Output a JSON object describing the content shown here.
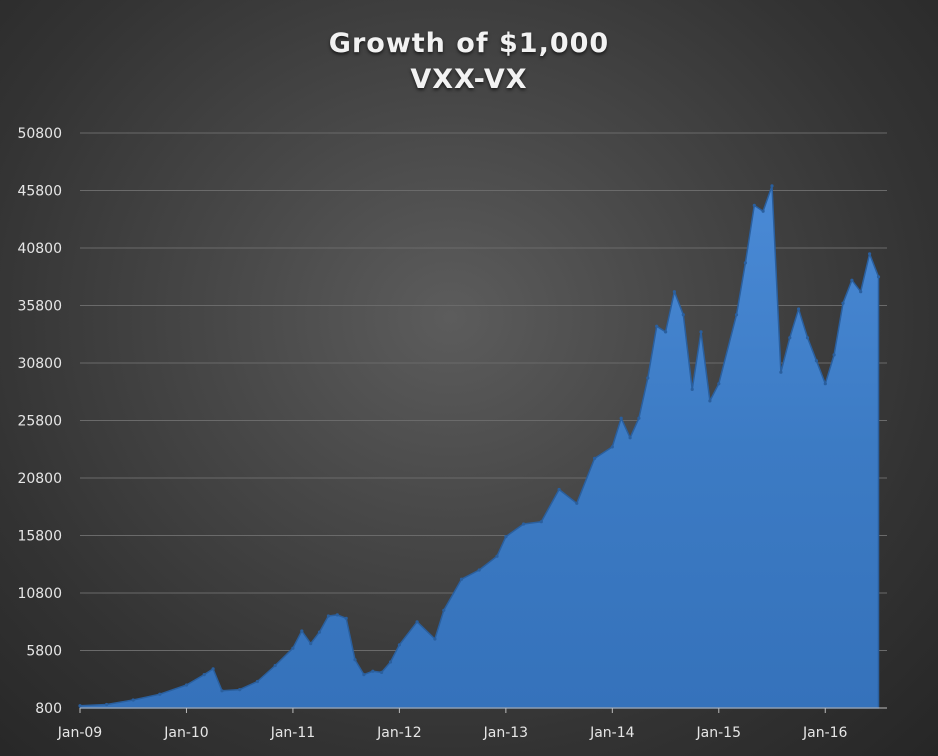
{
  "chart_data": {
    "type": "area",
    "title": "Growth of $1,000",
    "subtitle": "VXX-VX",
    "xlabel": "",
    "ylabel": "",
    "ylim": [
      800,
      50800
    ],
    "y_ticks": [
      "800",
      "5800",
      "10800",
      "15800",
      "20800",
      "25800",
      "30800",
      "35800",
      "40800",
      "45800",
      "50800"
    ],
    "x_ticks": [
      "Jan-09",
      "Jan-10",
      "Jan-11",
      "Jan-12",
      "Jan-13",
      "Jan-14",
      "Jan-15",
      "Jan-16"
    ],
    "grid": true,
    "legend": "none",
    "colors": {
      "fill": "#3c7bc4",
      "fill_dark": "#2a5f9e",
      "grid": "#6a6a6a"
    },
    "series": [
      {
        "values": [
          {
            "x": "Jan-09",
            "y": 1000
          },
          {
            "x": "Apr-09",
            "y": 1100
          },
          {
            "x": "Jul-09",
            "y": 1500
          },
          {
            "x": "Oct-09",
            "y": 2000
          },
          {
            "x": "Jan-10",
            "y": 2800
          },
          {
            "x": "Mar-10",
            "y": 3700
          },
          {
            "x": "Apr-10",
            "y": 4200
          },
          {
            "x": "May-10",
            "y": 2300
          },
          {
            "x": "Jul-10",
            "y": 2400
          },
          {
            "x": "Sep-10",
            "y": 3100
          },
          {
            "x": "Nov-10",
            "y": 4500
          },
          {
            "x": "Jan-11",
            "y": 6000
          },
          {
            "x": "Feb-11",
            "y": 7500
          },
          {
            "x": "Mar-11",
            "y": 6400
          },
          {
            "x": "Apr-11",
            "y": 7400
          },
          {
            "x": "May-11",
            "y": 8800
          },
          {
            "x": "Jun-11",
            "y": 8900
          },
          {
            "x": "Jul-11",
            "y": 8600
          },
          {
            "x": "Aug-11",
            "y": 5000
          },
          {
            "x": "Sep-11",
            "y": 3700
          },
          {
            "x": "Oct-11",
            "y": 4000
          },
          {
            "x": "Nov-11",
            "y": 3900
          },
          {
            "x": "Dec-11",
            "y": 4800
          },
          {
            "x": "Jan-12",
            "y": 6300
          },
          {
            "x": "Mar-12",
            "y": 8300
          },
          {
            "x": "May-12",
            "y": 6800
          },
          {
            "x": "Jun-12",
            "y": 9300
          },
          {
            "x": "Aug-12",
            "y": 12000
          },
          {
            "x": "Oct-12",
            "y": 12800
          },
          {
            "x": "Dec-12",
            "y": 14000
          },
          {
            "x": "Jan-13",
            "y": 15700
          },
          {
            "x": "Mar-13",
            "y": 16800
          },
          {
            "x": "May-13",
            "y": 17000
          },
          {
            "x": "Jul-13",
            "y": 19800
          },
          {
            "x": "Sep-13",
            "y": 18600
          },
          {
            "x": "Nov-13",
            "y": 22500
          },
          {
            "x": "Jan-14",
            "y": 23500
          },
          {
            "x": "Feb-14",
            "y": 26000
          },
          {
            "x": "Mar-14",
            "y": 24300
          },
          {
            "x": "Apr-14",
            "y": 26000
          },
          {
            "x": "May-14",
            "y": 29500
          },
          {
            "x": "Jun-14",
            "y": 34000
          },
          {
            "x": "Jul-14",
            "y": 33500
          },
          {
            "x": "Aug-14",
            "y": 37000
          },
          {
            "x": "Sep-14",
            "y": 35000
          },
          {
            "x": "Oct-14",
            "y": 28500
          },
          {
            "x": "Nov-14",
            "y": 33500
          },
          {
            "x": "Dec-14",
            "y": 27500
          },
          {
            "x": "Jan-15",
            "y": 29000
          },
          {
            "x": "Mar-15",
            "y": 35000
          },
          {
            "x": "Apr-15",
            "y": 39500
          },
          {
            "x": "May-15",
            "y": 44500
          },
          {
            "x": "Jun-15",
            "y": 44000
          },
          {
            "x": "Jul-15",
            "y": 46200
          },
          {
            "x": "Aug-15",
            "y": 30000
          },
          {
            "x": "Sep-15",
            "y": 33000
          },
          {
            "x": "Oct-15",
            "y": 35500
          },
          {
            "x": "Nov-15",
            "y": 33000
          },
          {
            "x": "Dec-15",
            "y": 31000
          },
          {
            "x": "Jan-16",
            "y": 29000
          },
          {
            "x": "Feb-16",
            "y": 31500
          },
          {
            "x": "Mar-16",
            "y": 36000
          },
          {
            "x": "Apr-16",
            "y": 38000
          },
          {
            "x": "May-16",
            "y": 37000
          },
          {
            "x": "Jun-16",
            "y": 40300
          },
          {
            "x": "Jul-16",
            "y": 38300
          }
        ]
      }
    ]
  }
}
